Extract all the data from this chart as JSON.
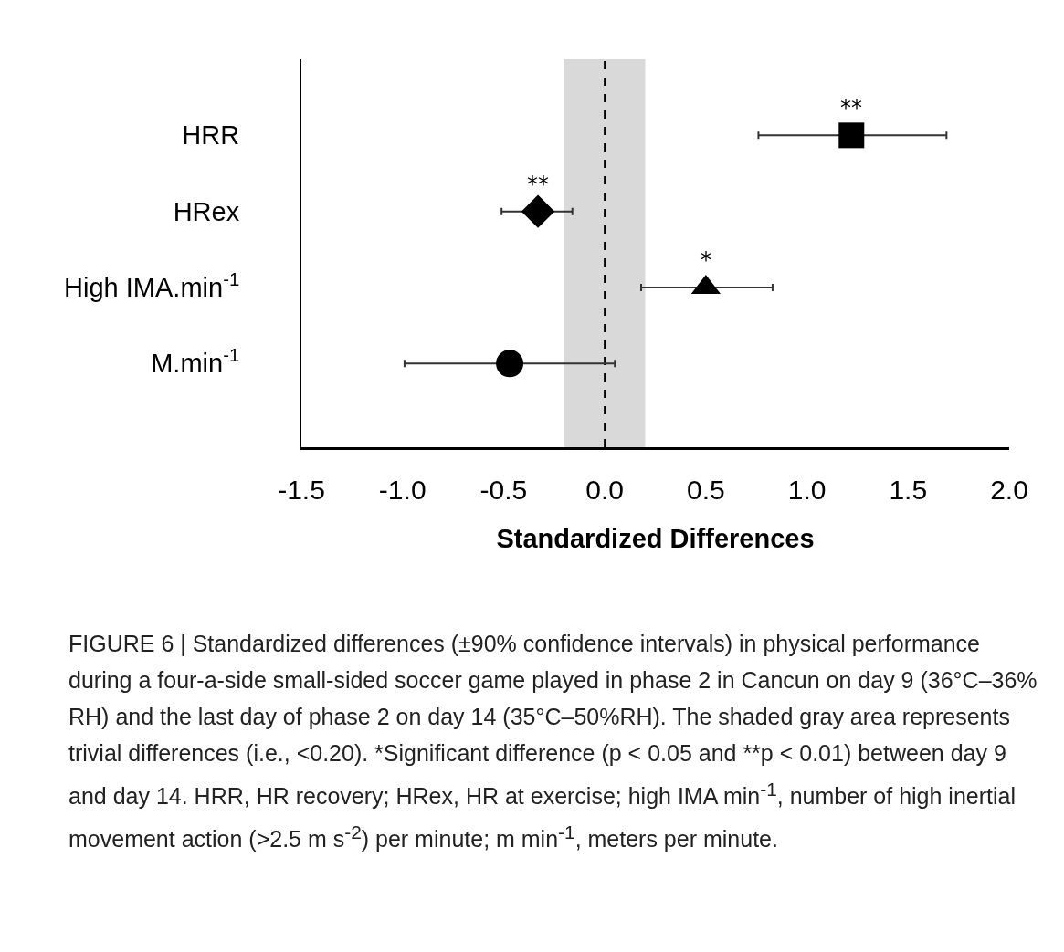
{
  "chart_data": {
    "type": "scatter",
    "orientation": "horizontal",
    "categories": [
      "HRR",
      "HRex",
      "High IMA.min$^{-1}$",
      "M.min$^{-1}$"
    ],
    "series": [
      {
        "color": "#000000",
        "marker": "square",
        "values": [
          1.22,
          null,
          null,
          null
        ],
        "errors": [
          [
            0.76,
            1.69
          ],
          null,
          null,
          null
        ]
      },
      {
        "color": "#000000",
        "marker": "diamond",
        "values": [
          null,
          -0.33,
          null,
          null
        ],
        "errors": [
          null,
          [
            -0.51,
            -0.16
          ],
          null,
          null
        ]
      },
      {
        "color": "#000000",
        "marker": "triangle",
        "values": [
          null,
          null,
          0.5,
          null
        ],
        "errors": [
          null,
          null,
          [
            0.18,
            0.83
          ],
          null
        ]
      },
      {
        "color": "#000000",
        "marker": "circle",
        "values": [
          null,
          null,
          null,
          -0.47
        ],
        "errors": [
          null,
          null,
          null,
          [
            -0.99,
            0.05
          ]
        ]
      }
    ],
    "xlabel": "Standardized Differences",
    "xlim": [
      -1.5,
      2.0
    ],
    "xticks": [
      {
        "value": -1.5,
        "label": "-1.5"
      },
      {
        "value": -1,
        "label": "-1.0"
      },
      {
        "value": -0.5,
        "label": "-0.5"
      },
      {
        "value": 0,
        "label": "0.0"
      },
      {
        "value": 0.5,
        "label": "0.5"
      },
      {
        "value": 1,
        "label": "1.0"
      },
      {
        "value": 1.5,
        "label": "1.5"
      },
      {
        "value": 2,
        "label": "2.0"
      }
    ],
    "ref_lines": [
      {
        "axis": "x",
        "value": 0,
        "line_style": "dashed",
        "color": "#000000"
      }
    ],
    "bands": [
      {
        "axis": "x",
        "from": -0.2,
        "to": 0.2,
        "color": "#d9d9d9"
      }
    ],
    "annotations": [
      {
        "text": "**",
        "x": 1.22,
        "y": "HRR"
      },
      {
        "text": "**",
        "x": -0.33,
        "y": "HRex"
      },
      {
        "text": "*",
        "x": 0.5,
        "y": "High IMA.min$^{-1}$"
      },
      "FIGURE 6 | Standardized differences (±90% confidence intervals) in physical performance during a four-a-side small-sided soccer game played in phase 2 in Cancun on day 9 (36°C–36% RH) and the last day of phase 2 on day 14 (35°C–50%RH). The shaded gray area represents trivial differences (i.e., <0.20). *Significant difference (p < 0.05 and **p < 0.01) between day 9 and day 14. HRR, HR recovery; HRex, HR at exercise; high IMA min$^{-1}$, number of high inertial movement action (>2.5 m s$^{-2}$) per minute; m min$^{-1}$, meters per minute."
    ]
  }
}
